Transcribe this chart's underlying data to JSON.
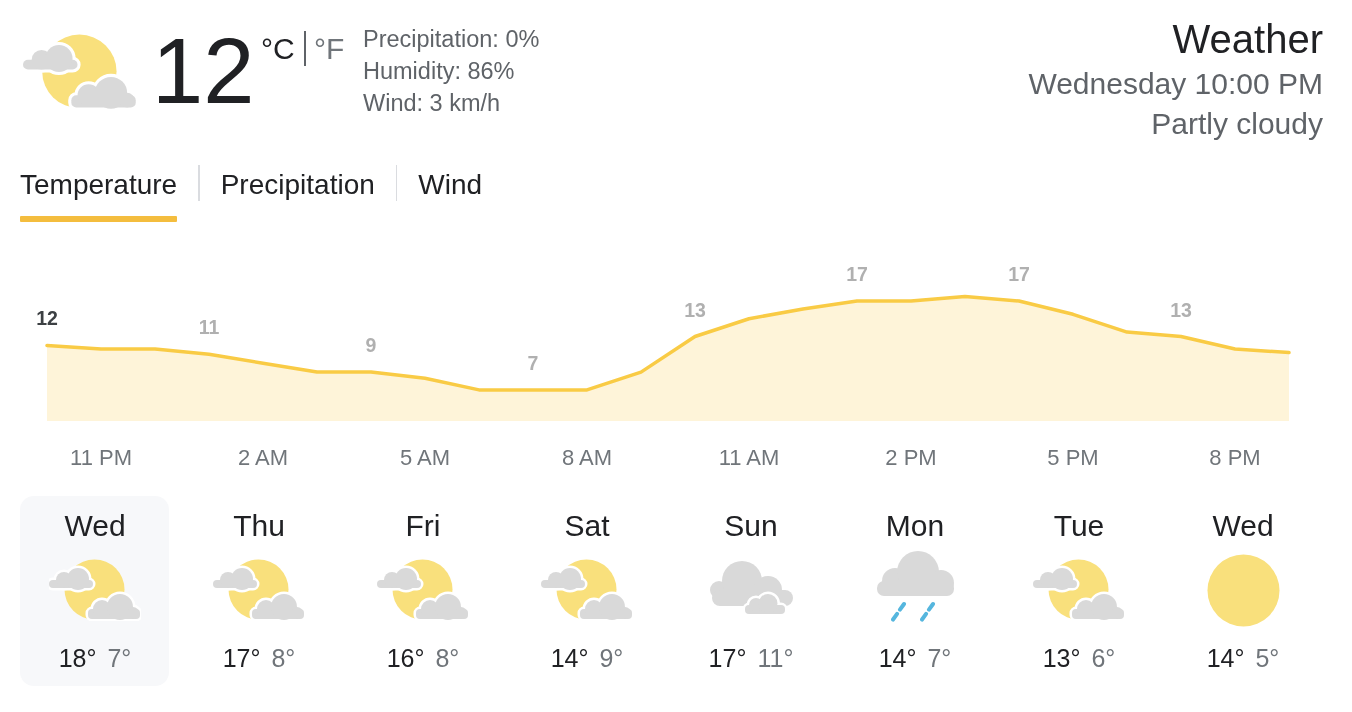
{
  "chart_data": [
    {
      "type": "other",
      "title": "Weather",
      "subtitle": "Wednesday 10:00 PM",
      "annotations": [
        "12",
        "°C",
        "°F",
        "Precipitation: 0%",
        "Humidity: 86%",
        "Wind: 3 km/h",
        "Partly cloudy"
      ]
    },
    {
      "type": "area",
      "annotations": [
        "Temperature",
        "Precipitation",
        "Wind"
      ],
      "categories": [
        null,
        "11 PM",
        null,
        null,
        "2 AM",
        null,
        null,
        "5 AM",
        null,
        null,
        "8 AM",
        null,
        null,
        "11 AM",
        null,
        null,
        "2 PM",
        null,
        null,
        "5 PM",
        null,
        null,
        "8 PM",
        null
      ],
      "values": [
        12,
        11.6,
        11.6,
        11,
        10,
        9,
        9,
        8.3,
        7,
        7,
        7,
        9,
        13,
        15,
        16.1,
        17,
        17,
        17.5,
        17,
        15.5,
        13.5,
        13,
        11.6,
        11.2
      ],
      "value_labels": [
        "12",
        null,
        null,
        "11",
        null,
        null,
        "9",
        null,
        null,
        "7",
        null,
        null,
        "13",
        null,
        null,
        "17",
        null,
        null,
        "17",
        null,
        null,
        "13",
        null,
        null
      ],
      "color": "#f9cb45",
      "tick_labels": "x"
    },
    {
      "type": "other",
      "categories": [
        "Wed",
        "Thu",
        "Fri",
        "Sat",
        "Sun",
        "Mon",
        "Tue",
        "Wed"
      ],
      "annotations": [
        "18°",
        "7°",
        "17°",
        "8°",
        "16°",
        "8°",
        "14°",
        "9°",
        "17°",
        "11°",
        "14°",
        "7°",
        "13°",
        "6°",
        "14°",
        "5°"
      ]
    }
  ]
}
